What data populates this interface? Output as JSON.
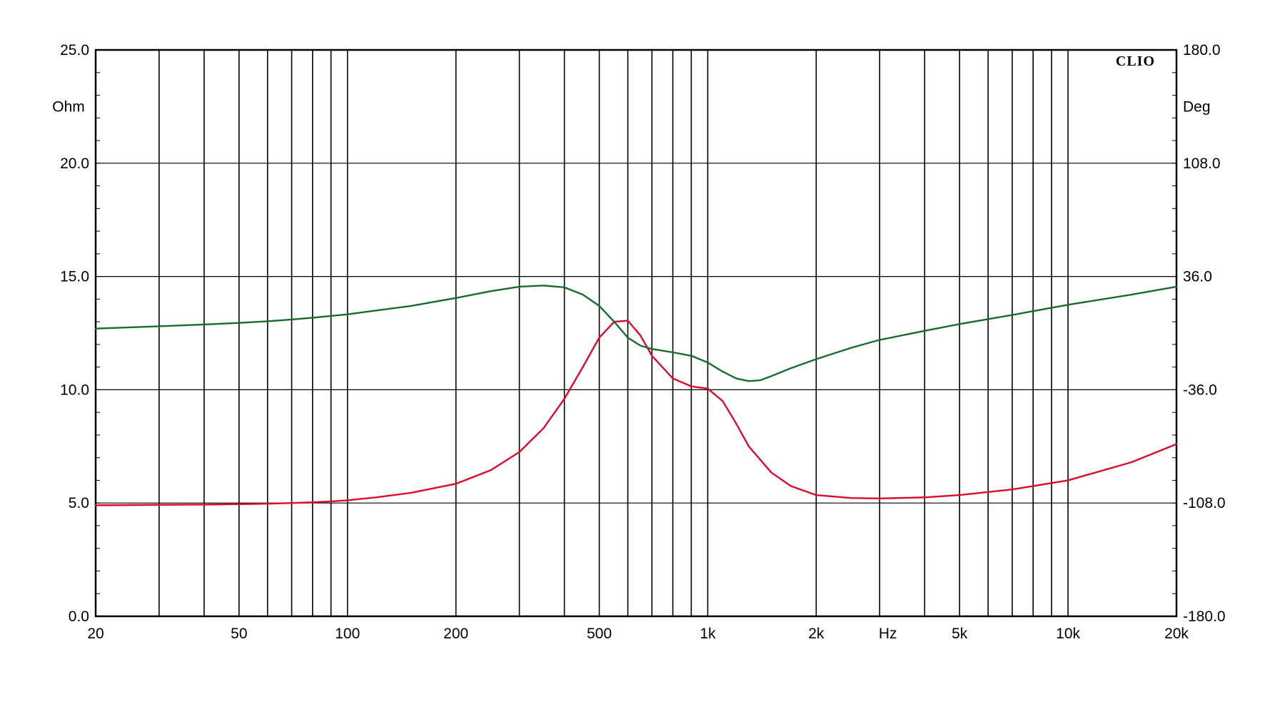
{
  "chart_data": {
    "type": "line",
    "title": "",
    "brand": "CLIO",
    "x_axis": {
      "scale": "log",
      "range": [
        20,
        20000
      ],
      "unit_label": "Hz",
      "unit_label_position_hz": 3162,
      "tick_labels": [
        {
          "value": 20,
          "label": "20"
        },
        {
          "value": 50,
          "label": "50"
        },
        {
          "value": 100,
          "label": "100"
        },
        {
          "value": 200,
          "label": "200"
        },
        {
          "value": 500,
          "label": "500"
        },
        {
          "value": 1000,
          "label": "1k"
        },
        {
          "value": 2000,
          "label": "2k"
        },
        {
          "value": 5000,
          "label": "5k"
        },
        {
          "value": 10000,
          "label": "10k"
        },
        {
          "value": 20000,
          "label": "20k"
        }
      ],
      "gridlines": [
        30,
        40,
        50,
        60,
        70,
        80,
        90,
        100,
        200,
        300,
        400,
        500,
        600,
        700,
        800,
        900,
        1000,
        2000,
        3000,
        4000,
        5000,
        6000,
        7000,
        8000,
        9000,
        10000
      ]
    },
    "y_axis_left": {
      "unit_label": "Ohm",
      "range": [
        0,
        25
      ],
      "tick_labels": [
        {
          "value": 0,
          "label": "0.0"
        },
        {
          "value": 5,
          "label": "5.0"
        },
        {
          "value": 10,
          "label": "10.0"
        },
        {
          "value": 15,
          "label": "15.0"
        },
        {
          "value": 20,
          "label": "20.0"
        },
        {
          "value": 25,
          "label": "25.0"
        }
      ]
    },
    "y_axis_right": {
      "unit_label": "Deg",
      "range": [
        -180,
        180
      ],
      "tick_labels": [
        {
          "value": -180,
          "label": "-180.0"
        },
        {
          "value": -108,
          "label": "-108.0"
        },
        {
          "value": -36,
          "label": "-36.0"
        },
        {
          "value": 36,
          "label": "36.0"
        },
        {
          "value": 108,
          "label": "108.0"
        },
        {
          "value": 180,
          "label": "180.0"
        }
      ]
    },
    "grid": true,
    "series": [
      {
        "axis": "left",
        "color": "#dd0a2c",
        "x": [
          20,
          30,
          40,
          50,
          60,
          70,
          80,
          90,
          100,
          120,
          150,
          200,
          250,
          300,
          350,
          400,
          450,
          500,
          550,
          600,
          650,
          700,
          800,
          900,
          1000,
          1100,
          1200,
          1300,
          1500,
          1700,
          2000,
          2500,
          3000,
          4000,
          5000,
          7000,
          10000,
          15000,
          20000
        ],
        "values": [
          4.9,
          4.92,
          4.93,
          4.95,
          4.97,
          5.0,
          5.03,
          5.07,
          5.12,
          5.25,
          5.45,
          5.85,
          6.45,
          7.25,
          8.3,
          9.6,
          11.0,
          12.3,
          13.0,
          13.05,
          12.4,
          11.5,
          10.5,
          10.15,
          10.05,
          9.5,
          8.5,
          7.5,
          6.35,
          5.75,
          5.35,
          5.22,
          5.2,
          5.25,
          5.35,
          5.6,
          6.0,
          6.8,
          7.6
        ]
      },
      {
        "axis": "left",
        "color": "#1a6b30",
        "x": [
          20,
          30,
          40,
          50,
          60,
          70,
          80,
          100,
          150,
          200,
          250,
          300,
          350,
          400,
          450,
          500,
          550,
          600,
          650,
          700,
          800,
          900,
          1000,
          1100,
          1200,
          1300,
          1400,
          1500,
          1700,
          2000,
          2500,
          3000,
          4000,
          5000,
          7000,
          10000,
          15000,
          20000
        ],
        "values": [
          12.7,
          12.8,
          12.88,
          12.95,
          13.02,
          13.1,
          13.18,
          13.33,
          13.7,
          14.05,
          14.35,
          14.55,
          14.6,
          14.52,
          14.2,
          13.7,
          13.0,
          12.3,
          11.95,
          11.8,
          11.65,
          11.5,
          11.2,
          10.8,
          10.5,
          10.38,
          10.42,
          10.6,
          10.95,
          11.35,
          11.85,
          12.2,
          12.6,
          12.9,
          13.3,
          13.75,
          14.2,
          14.55
        ]
      }
    ]
  }
}
